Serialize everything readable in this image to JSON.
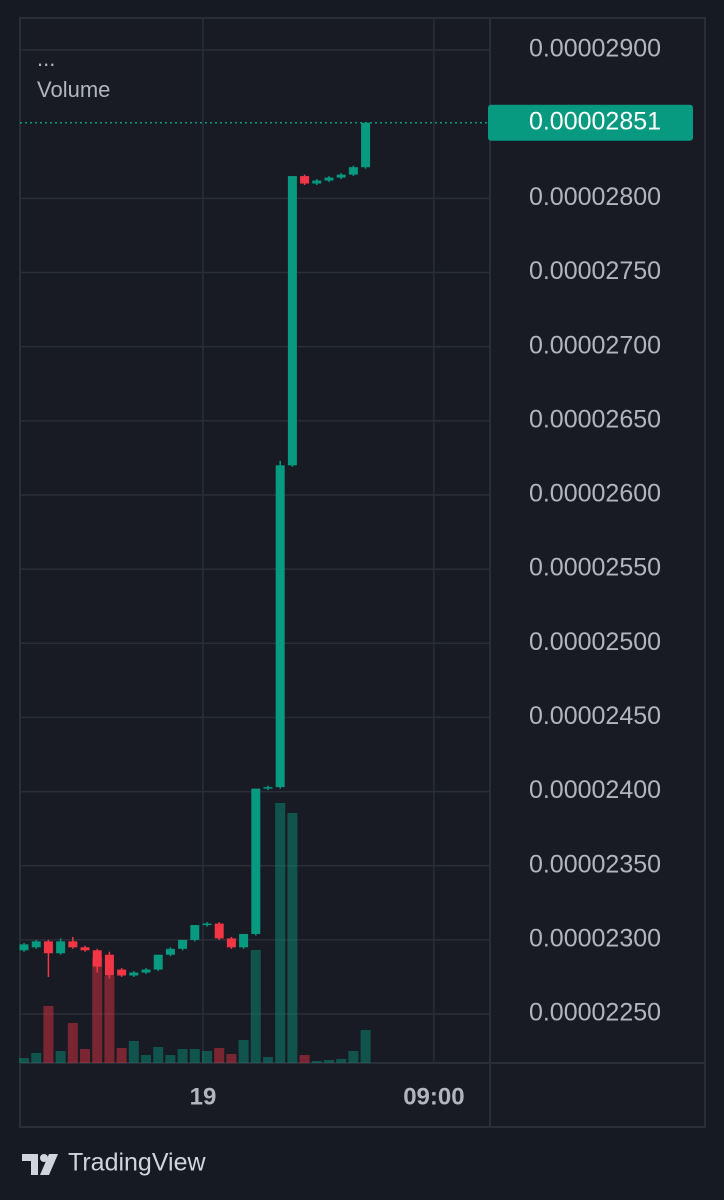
{
  "header": {
    "menu": "...",
    "indicator": "Volume"
  },
  "chart_data": {
    "type": "candlestick",
    "x": [
      0,
      1,
      2,
      3,
      4,
      5,
      6,
      7,
      8,
      9,
      10,
      11,
      12,
      13,
      14,
      15,
      16,
      17,
      18,
      19,
      20,
      21,
      22,
      23,
      24,
      25,
      26,
      27,
      28
    ],
    "open": [
      2.293e-05,
      2.295e-05,
      2.299e-05,
      2.291e-05,
      2.299e-05,
      2.295e-05,
      2.293e-05,
      2.29e-05,
      2.28e-05,
      2.276e-05,
      2.278e-05,
      2.28e-05,
      2.29e-05,
      2.294e-05,
      2.3e-05,
      2.31e-05,
      2.311e-05,
      2.301e-05,
      2.295e-05,
      2.304e-05,
      2.402e-05,
      2.403e-05,
      2.62e-05,
      2.815e-05,
      2.81e-05,
      2.812e-05,
      2.814e-05,
      2.816e-05,
      2.821e-05
    ],
    "high": [
      2.298e-05,
      2.3e-05,
      2.3e-05,
      2.301e-05,
      2.302e-05,
      2.296e-05,
      2.294e-05,
      2.292e-05,
      2.281e-05,
      2.279e-05,
      2.281e-05,
      2.29e-05,
      2.295e-05,
      2.3e-05,
      2.31e-05,
      2.312e-05,
      2.312e-05,
      2.302e-05,
      2.304e-05,
      2.402e-05,
      2.404e-05,
      2.623e-05,
      2.815e-05,
      2.816e-05,
      2.813e-05,
      2.815e-05,
      2.817e-05,
      2.822e-05,
      2.851e-05
    ],
    "low": [
      2.292e-05,
      2.294e-05,
      2.275e-05,
      2.29e-05,
      2.294e-05,
      2.292e-05,
      2.278e-05,
      2.274e-05,
      2.275e-05,
      2.275e-05,
      2.277e-05,
      2.279e-05,
      2.289e-05,
      2.293e-05,
      2.299e-05,
      2.309e-05,
      2.3e-05,
      2.294e-05,
      2.294e-05,
      2.303e-05,
      2.401e-05,
      2.402e-05,
      2.619e-05,
      2.809e-05,
      2.809e-05,
      2.811e-05,
      2.813e-05,
      2.815e-05,
      2.82e-05
    ],
    "close": [
      2.297e-05,
      2.299e-05,
      2.291e-05,
      2.299e-05,
      2.295e-05,
      2.293e-05,
      2.282e-05,
      2.276e-05,
      2.276e-05,
      2.278e-05,
      2.28e-05,
      2.29e-05,
      2.294e-05,
      2.3e-05,
      2.31e-05,
      2.311e-05,
      2.301e-05,
      2.295e-05,
      2.304e-05,
      2.402e-05,
      2.403e-05,
      2.62e-05,
      2.815e-05,
      2.81e-05,
      2.812e-05,
      2.814e-05,
      2.816e-05,
      2.821e-05,
      2.851e-05
    ],
    "volume": [
      5,
      10,
      57,
      12,
      40,
      14,
      105,
      87,
      15,
      22,
      8,
      16,
      8,
      14,
      14,
      12,
      15,
      9,
      23,
      113,
      6,
      260,
      250,
      8,
      2,
      3,
      4,
      12,
      33
    ],
    "up_color": "#089981",
    "down_color": "#f23645",
    "ylim": [
      2.217e-05,
      2.9216e-05
    ],
    "yticks": [
      {
        "value": 2.25e-05,
        "label": "0.00002250"
      },
      {
        "value": 2.3e-05,
        "label": "0.00002300"
      },
      {
        "value": 2.35e-05,
        "label": "0.00002350"
      },
      {
        "value": 2.4e-05,
        "label": "0.00002400"
      },
      {
        "value": 2.45e-05,
        "label": "0.00002450"
      },
      {
        "value": 2.5e-05,
        "label": "0.00002500"
      },
      {
        "value": 2.55e-05,
        "label": "0.00002550"
      },
      {
        "value": 2.6e-05,
        "label": "0.00002600"
      },
      {
        "value": 2.65e-05,
        "label": "0.00002650"
      },
      {
        "value": 2.7e-05,
        "label": "0.00002700"
      },
      {
        "value": 2.75e-05,
        "label": "0.00002750"
      },
      {
        "value": 2.8e-05,
        "label": "0.00002800"
      },
      {
        "value": 2.9e-05,
        "label": "0.00002900"
      }
    ],
    "xlim": [
      -0.33,
      38.2
    ],
    "xticks": [
      {
        "value": 14.67,
        "label": "19"
      },
      {
        "value": 33.6,
        "label": "09:00"
      }
    ],
    "last_price": {
      "value": 2.851e-05,
      "label": "0.00002851"
    },
    "grid": true
  },
  "footer": {
    "brand": "TradingView"
  }
}
